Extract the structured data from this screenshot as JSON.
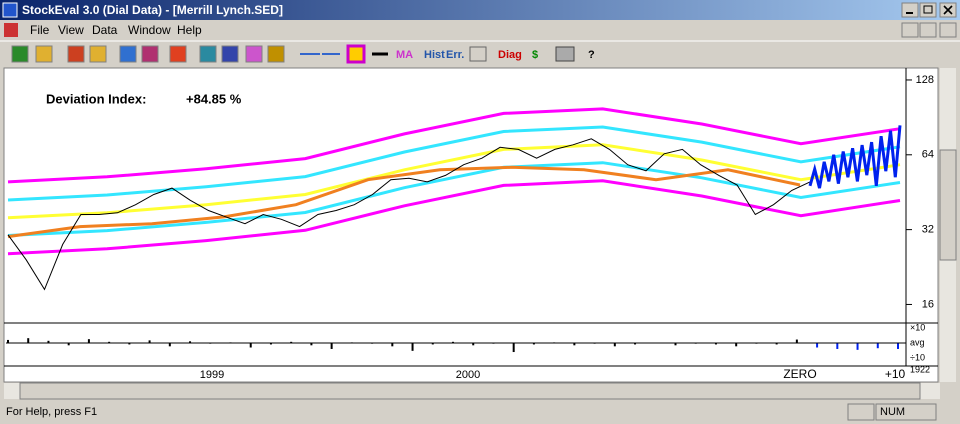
{
  "window": {
    "title": "StockEval 3.0  (Dial Data) - [Merrill Lynch.SED]",
    "menu": [
      "File",
      "View",
      "Data",
      "Window",
      "Help"
    ],
    "toolbar_labels": [
      "MA",
      "Hist",
      "Err.",
      "Diag",
      "$",
      "?"
    ],
    "status": "For Help, press F1",
    "indicator": "NUM"
  },
  "chart_data": {
    "type": "line",
    "log_scale": true,
    "annotation_label": "Deviation Index:",
    "annotation_value": "+84.85 %",
    "ylim": [
      13.6,
      143
    ],
    "yticks": [
      16,
      32,
      64,
      128
    ],
    "x_labels": [
      "1999",
      "2000",
      "ZERO",
      "+10"
    ],
    "x_corner_label": "1922",
    "series": [
      {
        "color": "#ff00ff",
        "values": [
          49.8,
          52.2,
          56.2,
          61.8,
          77.7,
          93.9,
          97.9,
          85.1,
          70.9,
          81.5
        ]
      },
      {
        "color": "#33e6ff",
        "values": [
          42.1,
          44.1,
          47.6,
          52.3,
          65.7,
          79.4,
          82.8,
          72,
          59.9,
          68.9
        ]
      },
      {
        "color": "#ffff33",
        "values": [
          35.7,
          37.4,
          40.3,
          44.3,
          55.7,
          67.3,
          70.2,
          61,
          50.8,
          58.4
        ]
      },
      {
        "color": "#33e6ff",
        "values": [
          30.3,
          31.7,
          34.2,
          37.5,
          47.2,
          57,
          59.5,
          51.7,
          43.1,
          49.5
        ]
      },
      {
        "color": "#ff00ff",
        "values": [
          25.6,
          26.8,
          28.9,
          31.8,
          39.9,
          48.2,
          50.3,
          43.7,
          36.4,
          41.9
        ]
      },
      {
        "color": "#f08020",
        "values": [
          30,
          32.9,
          33.8,
          36,
          40.3,
          50.8,
          55.7,
          57,
          55.7,
          50.8,
          55.7,
          48.4
        ]
      },
      {
        "color": "#000000",
        "values": [
          30.5,
          24.2,
          18.4,
          27.9,
          36.8,
          36.8,
          37.4,
          40.3,
          44.3,
          47,
          42,
          38.2,
          35.9,
          33.8,
          36.8,
          35.2,
          32.9,
          36.8,
          38.2,
          40.3,
          44.3,
          50.8,
          51.5,
          49.8,
          52.9,
          58.4,
          62,
          68.6,
          67.3,
          62,
          67.3,
          70.2,
          74.2,
          67.3,
          58.4,
          55.2,
          64.6,
          67.3,
          58.4,
          52.9,
          48.4,
          36.8,
          40.3,
          46,
          49.8
        ]
      },
      {
        "color": "#0022ee",
        "values": [
          48,
          56,
          47,
          60,
          50,
          64,
          49,
          66,
          52,
          68,
          50,
          70,
          53,
          72,
          48,
          76,
          55,
          80,
          52,
          84
        ]
      }
    ],
    "lower_panel": {
      "labels": [
        "×10",
        "avg",
        "÷10"
      ],
      "values": [
        1.6,
        2.1,
        1.4,
        0.7,
        1.8,
        1.2,
        0.8,
        1.5,
        0.6,
        1.3,
        0.9,
        1.1,
        0.5,
        0.8,
        1.2,
        0.7,
        0.4,
        1.1,
        0.9,
        0.6,
        0.3,
        0.8,
        1.2,
        0.7,
        0.9,
        0.25,
        0.8,
        1.1,
        0.7,
        0.9,
        0.6,
        0.8,
        1.0,
        0.7,
        0.9,
        0.8,
        0.6,
        0.9,
        0.8,
        1.7,
        0.5,
        0.4,
        0.35,
        0.45,
        0.4
      ]
    }
  }
}
